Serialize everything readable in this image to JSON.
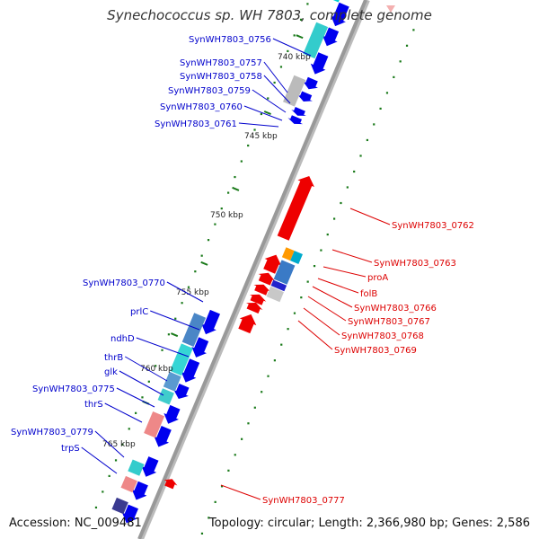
{
  "title": "Synechococcus sp. WH 7803, complete genome",
  "footer": {
    "accession": "Accession: NC_009481",
    "summary": "Topology: circular; Length: 2,366,980 bp; Genes: 2,586"
  },
  "colors": {
    "forward_gene": "#0000ee",
    "reverse_gene": "#ee0000",
    "backbone": "#999999",
    "tick": "#1a7a1a",
    "forward_label": "#0000cc",
    "reverse_label": "#dd0000"
  },
  "kbp_ticks": [
    "740 kbp",
    "745 kbp",
    "750 kbp",
    "755 kbp",
    "760 kbp",
    "765 kbp"
  ],
  "forward_labels": [
    "SynWH7803_0756",
    "SynWH7803_0757",
    "SynWH7803_0758",
    "SynWH7803_0759",
    "SynWH7803_0760",
    "SynWH7803_0761",
    "SynWH7803_0770",
    "prlC",
    "ndhD",
    "thrB",
    "glk",
    "SynWH7803_0775",
    "thrS",
    "SynWH7803_0779",
    "trpS"
  ],
  "reverse_labels": [
    "SynWH7803_0762",
    "SynWH7803_0763",
    "proA",
    "folB",
    "SynWH7803_0766",
    "SynWH7803_0767",
    "SynWH7803_0768",
    "SynWH7803_0769",
    "SynWH7803_0777"
  ]
}
